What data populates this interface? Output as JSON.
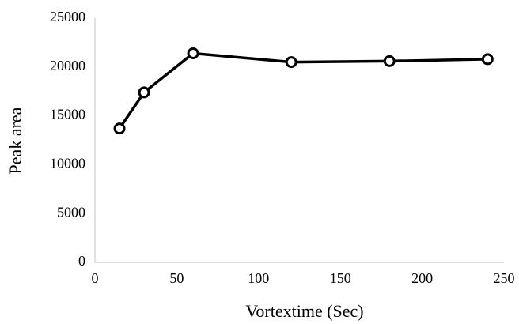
{
  "chart_data": {
    "type": "line",
    "x_label": "Vortextime (Sec)",
    "y_label": "Peak area",
    "x": [
      15,
      30,
      60,
      120,
      180,
      240
    ],
    "series": [
      {
        "color": "#000000",
        "values": [
          13700,
          17400,
          21400,
          20500,
          20600,
          20800
        ]
      }
    ],
    "xlim": [
      0,
      250
    ],
    "xticks": [
      0,
      50,
      100,
      150,
      200,
      250
    ],
    "ylim": [
      0,
      25000
    ],
    "yticks": [
      0,
      5000,
      10000,
      15000,
      20000,
      25000
    ],
    "grid": false,
    "markers": true
  }
}
